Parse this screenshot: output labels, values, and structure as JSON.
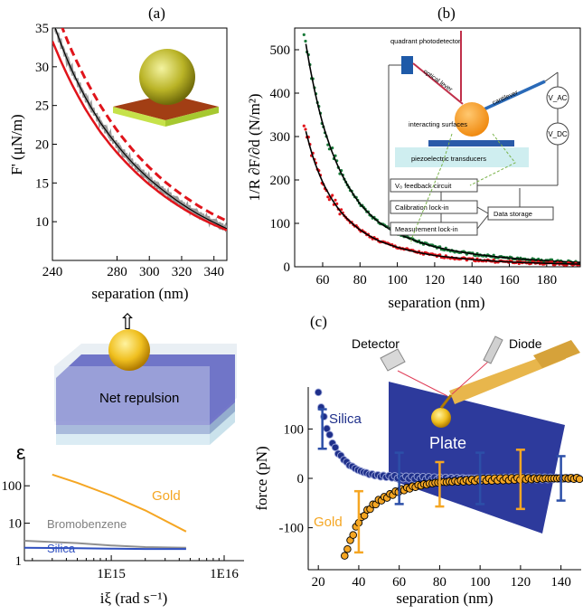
{
  "panel_labels": {
    "a": "(a)",
    "b": "(b)",
    "c": "(c)"
  },
  "colors": {
    "red": "#e0141b",
    "green": "#1a7a3a",
    "black": "#000000",
    "navy": "#1e2f8a",
    "gold": "#f5a623",
    "silica_line": "#3050c0",
    "gray_line": "#909090",
    "plate": "#2d3a9c"
  },
  "chart_data": [
    {
      "id": "a",
      "type": "line",
      "title": "",
      "xlabel": "separation (nm)",
      "ylabel": "F' (μN/m)",
      "xlim": [
        240,
        348
      ],
      "ylim": [
        5,
        35
      ],
      "xticks": [
        240,
        280,
        300,
        320,
        340
      ],
      "xtick_labels": [
        "240",
        "280",
        "300",
        "320",
        "340"
      ],
      "yticks": [
        10,
        15,
        20,
        25,
        30,
        35
      ],
      "series": [
        {
          "style": "dashed-red",
          "x": [
            240,
            250,
            260,
            270,
            280,
            290,
            300,
            310,
            320,
            330,
            340,
            348
          ],
          "y": [
            38.5,
            33.0,
            28.6,
            24.9,
            21.8,
            19.2,
            17.0,
            15.1,
            13.5,
            12.1,
            10.9,
            10.1
          ]
        },
        {
          "style": "data-gray",
          "x": [
            240,
            250,
            260,
            270,
            280,
            290,
            300,
            310,
            320,
            330,
            340,
            348
          ],
          "y": [
            36.0,
            30.5,
            26.2,
            22.7,
            19.9,
            17.5,
            15.5,
            13.8,
            12.3,
            11.0,
            9.9,
            9.1
          ]
        },
        {
          "style": "solid-red",
          "x": [
            240,
            250,
            260,
            270,
            280,
            290,
            300,
            310,
            320,
            330,
            340,
            348
          ],
          "y": [
            33.3,
            28.6,
            24.7,
            21.5,
            18.9,
            16.7,
            14.8,
            13.2,
            11.8,
            10.6,
            9.6,
            8.9
          ]
        }
      ]
    },
    {
      "id": "b",
      "type": "scatter",
      "title": "",
      "xlabel": "separation (nm)",
      "ylabel": "1/R ∂F/∂d (N/m²)",
      "xlim": [
        45,
        198
      ],
      "ylim": [
        0,
        550
      ],
      "xticks": [
        60,
        80,
        100,
        120,
        140,
        160,
        180
      ],
      "yticks": [
        0,
        100,
        200,
        300,
        400,
        500
      ],
      "series": [
        {
          "color": "green",
          "x": [
            50,
            55,
            60,
            65,
            70,
            80,
            90,
            100,
            120,
            140,
            160,
            180,
            198
          ],
          "y": [
            540,
            420,
            330,
            265,
            215,
            145,
            103,
            77,
            46,
            30,
            20,
            14,
            10
          ]
        },
        {
          "color": "red",
          "x": [
            50,
            55,
            60,
            65,
            70,
            80,
            90,
            100,
            120,
            140,
            160,
            180,
            198
          ],
          "y": [
            330,
            250,
            195,
            155,
            125,
            85,
            60,
            45,
            26,
            17,
            11,
            8,
            6
          ]
        }
      ],
      "inset_labels": {
        "detector": "quadrant photodetector",
        "lever": "optical lever",
        "cantilever": "cantilever",
        "vac": "V_AC",
        "vdc": "V_DC",
        "surfaces": "interacting surfaces",
        "piezo": "piezoelectric transducers",
        "feedback": "V₀ feedback circuit",
        "calib": "Calibration lock-in",
        "measure": "Measurement lock-in",
        "storage": "Data storage"
      }
    },
    {
      "id": "epsilon",
      "type": "line",
      "title": "",
      "xlabel": "iξ (rad s⁻¹)",
      "ylabel": "ε",
      "scale": "log-log",
      "xlim": [
        170000000000000.0,
        1.5e+16
      ],
      "ylim": [
        1,
        600
      ],
      "xtick_labels": [
        "1E15",
        "1E16"
      ],
      "ytick_labels": [
        "1",
        "10",
        "100"
      ],
      "series": [
        {
          "name": "Gold",
          "x": [
            300000000000000.0,
            500000000000000.0,
            1000000000000000.0,
            2000000000000000.0,
            4600000000000000.0
          ],
          "y": [
            200,
            120,
            55,
            22,
            6
          ]
        },
        {
          "name": "Bromobenzene",
          "x": [
            170000000000000.0,
            500000000000000.0,
            1000000000000000.0,
            2000000000000000.0,
            4600000000000000.0
          ],
          "y": [
            3.4,
            2.95,
            2.55,
            2.3,
            2.2
          ]
        },
        {
          "name": "Silica",
          "x": [
            170000000000000.0,
            500000000000000.0,
            1000000000000000.0,
            2000000000000000.0,
            4600000000000000.0
          ],
          "y": [
            2.2,
            2.15,
            2.1,
            2.05,
            2.05
          ]
        }
      ]
    },
    {
      "id": "c",
      "type": "scatter",
      "title": "",
      "xlabel": "separation (nm)",
      "ylabel": "force (pN)",
      "xlim": [
        15,
        150
      ],
      "ylim": [
        -185,
        185
      ],
      "xticks": [
        20,
        40,
        60,
        80,
        100,
        120,
        140
      ],
      "yticks": [
        -100,
        0,
        100
      ],
      "series": [
        {
          "name": "Silica",
          "x": [
            20,
            22,
            24,
            26,
            28,
            30,
            35,
            40,
            45,
            50,
            60,
            70,
            80,
            100,
            120,
            140,
            150
          ],
          "y": [
            172,
            135,
            105,
            82,
            64,
            50,
            28,
            16,
            9,
            5,
            2,
            1,
            0,
            0,
            0,
            0,
            0
          ]
        },
        {
          "name": "Gold",
          "x": [
            33,
            35,
            38,
            40,
            45,
            50,
            55,
            60,
            70,
            80,
            100,
            120,
            140,
            150
          ],
          "y": [
            -158,
            -135,
            -105,
            -88,
            -62,
            -45,
            -35,
            -25,
            -14,
            -8,
            -3,
            -1,
            0,
            0
          ]
        }
      ],
      "error_bars": [
        {
          "series": "Silica",
          "x": 22,
          "y": 100,
          "err": 40
        },
        {
          "series": "Silica",
          "x": 60,
          "y": 0,
          "err": 52
        },
        {
          "series": "Silica",
          "x": 100,
          "y": 0,
          "err": 52
        },
        {
          "series": "Silica",
          "x": 140,
          "y": 0,
          "err": 45
        },
        {
          "series": "Gold",
          "x": 40,
          "y": -88,
          "err": 62
        },
        {
          "series": "Gold",
          "x": 80,
          "y": -12,
          "err": 45
        },
        {
          "series": "Gold",
          "x": 120,
          "y": -2,
          "err": 60
        }
      ],
      "inset_labels": {
        "detector": "Detector",
        "diode": "Diode",
        "plate": "Plate"
      }
    }
  ],
  "illustration": {
    "label": "Net repulsion",
    "arrow": "⇧"
  }
}
